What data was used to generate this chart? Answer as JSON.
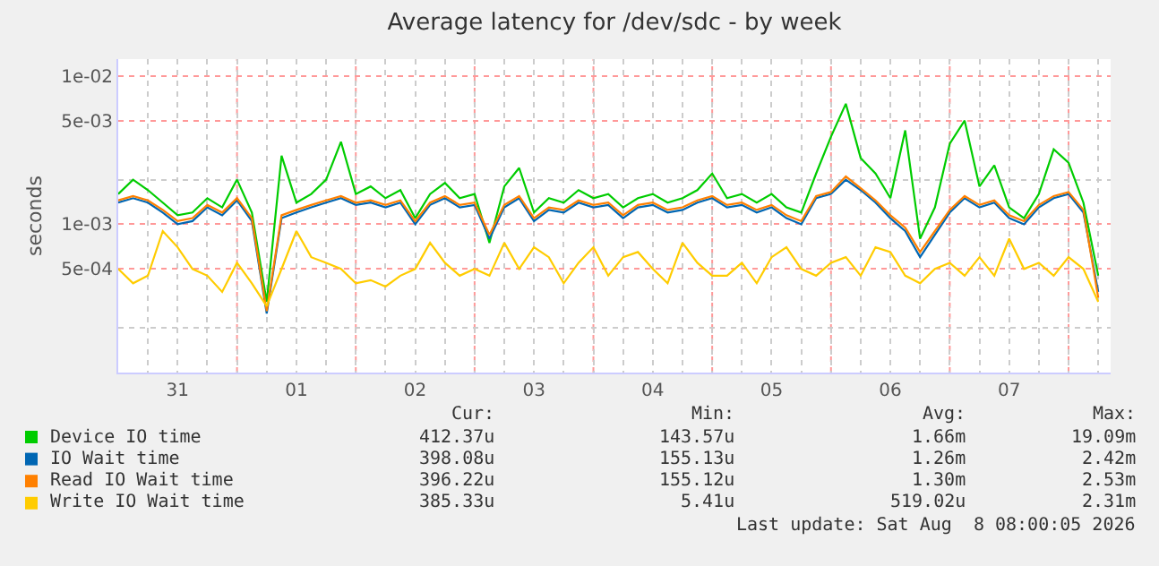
{
  "chart_data": {
    "type": "line",
    "title": "Average latency for /dev/sdc - by week",
    "ylabel": "seconds",
    "x": [
      "2026-07-31T00:00",
      "2026-07-31T03:00",
      "2026-07-31T06:00",
      "2026-07-31T09:00",
      "2026-07-31T12:00",
      "2026-07-31T15:00",
      "2026-07-31T18:00",
      "2026-07-31T21:00",
      "2026-08-01T00:00",
      "2026-08-01T03:00",
      "2026-08-01T06:00",
      "2026-08-01T09:00",
      "2026-08-01T12:00",
      "2026-08-01T15:00",
      "2026-08-01T18:00",
      "2026-08-01T21:00",
      "2026-08-02T00:00",
      "2026-08-02T03:00",
      "2026-08-02T06:00",
      "2026-08-02T09:00",
      "2026-08-02T12:00",
      "2026-08-02T15:00",
      "2026-08-02T18:00",
      "2026-08-02T21:00",
      "2026-08-03T00:00",
      "2026-08-03T03:00",
      "2026-08-03T06:00",
      "2026-08-03T09:00",
      "2026-08-03T12:00",
      "2026-08-03T15:00",
      "2026-08-03T18:00",
      "2026-08-03T21:00",
      "2026-08-04T00:00",
      "2026-08-04T03:00",
      "2026-08-04T06:00",
      "2026-08-04T09:00",
      "2026-08-04T12:00",
      "2026-08-04T15:00",
      "2026-08-04T18:00",
      "2026-08-04T21:00",
      "2026-08-05T00:00",
      "2026-08-05T03:00",
      "2026-08-05T06:00",
      "2026-08-05T09:00",
      "2026-08-05T12:00",
      "2026-08-05T15:00",
      "2026-08-05T18:00",
      "2026-08-05T21:00",
      "2026-08-06T00:00",
      "2026-08-06T03:00",
      "2026-08-06T06:00",
      "2026-08-06T09:00",
      "2026-08-06T12:00",
      "2026-08-06T15:00",
      "2026-08-06T18:00",
      "2026-08-06T21:00",
      "2026-08-07T00:00",
      "2026-08-07T03:00",
      "2026-08-07T06:00",
      "2026-08-07T09:00",
      "2026-08-07T12:00",
      "2026-08-07T15:00",
      "2026-08-07T18:00",
      "2026-08-07T21:00",
      "2026-08-08T00:00",
      "2026-08-08T03:00",
      "2026-08-08T06:00"
    ],
    "series": [
      {
        "name": "Device IO time",
        "color": "#00cc00",
        "values": [
          0.0016,
          0.002,
          0.0017,
          0.0014,
          0.00115,
          0.0012,
          0.0015,
          0.0013,
          0.002,
          0.0012,
          0.0003,
          0.0029,
          0.0014,
          0.0016,
          0.002,
          0.0036,
          0.0016,
          0.0018,
          0.0015,
          0.0017,
          0.0011,
          0.0016,
          0.0019,
          0.0015,
          0.0016,
          0.00075,
          0.0018,
          0.0024,
          0.0012,
          0.0015,
          0.0014,
          0.0017,
          0.0015,
          0.0016,
          0.0013,
          0.0015,
          0.0016,
          0.0014,
          0.0015,
          0.0017,
          0.0022,
          0.0015,
          0.0016,
          0.0014,
          0.0016,
          0.0013,
          0.0012,
          0.0022,
          0.0039,
          0.0065,
          0.0028,
          0.0022,
          0.0015,
          0.0043,
          0.0008,
          0.0013,
          0.0035,
          0.005,
          0.0018,
          0.0025,
          0.0013,
          0.0011,
          0.0016,
          0.0032,
          0.0026,
          0.0014,
          0.00045
        ]
      },
      {
        "name": "IO Wait time",
        "color": "#0066b3",
        "values": [
          0.0014,
          0.0015,
          0.0014,
          0.0012,
          0.001,
          0.00105,
          0.0013,
          0.00115,
          0.00145,
          0.00105,
          0.00025,
          0.0011,
          0.0012,
          0.0013,
          0.0014,
          0.0015,
          0.00135,
          0.0014,
          0.0013,
          0.0014,
          0.001,
          0.00135,
          0.0015,
          0.0013,
          0.00135,
          0.0008,
          0.0013,
          0.0015,
          0.00105,
          0.00125,
          0.0012,
          0.0014,
          0.0013,
          0.00135,
          0.0011,
          0.0013,
          0.00135,
          0.0012,
          0.00125,
          0.0014,
          0.0015,
          0.0013,
          0.00135,
          0.0012,
          0.0013,
          0.0011,
          0.001,
          0.0015,
          0.0016,
          0.002,
          0.0017,
          0.0014,
          0.0011,
          0.0009,
          0.0006,
          0.00085,
          0.0012,
          0.0015,
          0.0013,
          0.0014,
          0.0011,
          0.001,
          0.0013,
          0.0015,
          0.0016,
          0.0012,
          0.00035
        ]
      },
      {
        "name": "Read IO Wait time",
        "color": "#ff8000",
        "values": [
          0.00145,
          0.00155,
          0.00145,
          0.00125,
          0.00105,
          0.0011,
          0.00135,
          0.0012,
          0.0015,
          0.0011,
          0.00026,
          0.00115,
          0.00125,
          0.00135,
          0.00145,
          0.00155,
          0.0014,
          0.00145,
          0.00135,
          0.00145,
          0.00105,
          0.0014,
          0.00155,
          0.00135,
          0.0014,
          0.00085,
          0.00135,
          0.00155,
          0.0011,
          0.0013,
          0.00125,
          0.00145,
          0.00135,
          0.0014,
          0.00115,
          0.00135,
          0.0014,
          0.00125,
          0.0013,
          0.00145,
          0.00155,
          0.00135,
          0.0014,
          0.00125,
          0.00135,
          0.00115,
          0.00105,
          0.00155,
          0.00165,
          0.0021,
          0.00175,
          0.00145,
          0.00115,
          0.00095,
          0.00065,
          0.0009,
          0.00125,
          0.00155,
          0.00135,
          0.00145,
          0.00115,
          0.00105,
          0.00135,
          0.00155,
          0.00165,
          0.00125,
          0.00032
        ]
      },
      {
        "name": "Write IO Wait time",
        "color": "#ffcc00",
        "values": [
          0.0005,
          0.0004,
          0.00045,
          0.0009,
          0.0007,
          0.0005,
          0.00045,
          0.00035,
          0.00055,
          0.0004,
          0.00028,
          0.0005,
          0.0009,
          0.0006,
          0.00055,
          0.0005,
          0.0004,
          0.00042,
          0.00038,
          0.00045,
          0.0005,
          0.00075,
          0.00055,
          0.00045,
          0.0005,
          0.00045,
          0.00075,
          0.0005,
          0.0007,
          0.0006,
          0.0004,
          0.00055,
          0.0007,
          0.00045,
          0.0006,
          0.00065,
          0.0005,
          0.0004,
          0.00075,
          0.00055,
          0.00045,
          0.00045,
          0.00055,
          0.0004,
          0.0006,
          0.0007,
          0.0005,
          0.00045,
          0.00055,
          0.0006,
          0.00045,
          0.0007,
          0.00065,
          0.00045,
          0.0004,
          0.0005,
          0.00055,
          0.00045,
          0.0006,
          0.00045,
          0.0008,
          0.0005,
          0.00055,
          0.00045,
          0.0006,
          0.0005,
          0.0003
        ]
      }
    ],
    "log": "y",
    "ylim": [
      0.0001,
      0.013
    ],
    "yticks": [
      {
        "value": 0.01,
        "label": "1e-02"
      },
      {
        "value": 0.005,
        "label": "5e-03"
      },
      {
        "value": 0.001,
        "label": "1e-03"
      },
      {
        "value": 0.0005,
        "label": "5e-04"
      }
    ],
    "xlim": [
      "2026-07-31T00:00",
      "2026-08-08T08:30"
    ],
    "xticks": [
      {
        "value": "2026-07-31T12:00",
        "label": "31"
      },
      {
        "value": "2026-08-01T12:00",
        "label": "01"
      },
      {
        "value": "2026-08-02T12:00",
        "label": "02"
      },
      {
        "value": "2026-08-03T12:00",
        "label": "03"
      },
      {
        "value": "2026-08-04T12:00",
        "label": "04"
      },
      {
        "value": "2026-08-05T12:00",
        "label": "05"
      },
      {
        "value": "2026-08-06T12:00",
        "label": "06"
      },
      {
        "value": "2026-08-07T12:00",
        "label": "07"
      }
    ],
    "ref_lines": [
      {
        "axis": "x",
        "value": "2026-08-01T00:00",
        "color": "#ff9999",
        "line_style": "dotted"
      },
      {
        "axis": "x",
        "value": "2026-08-02T00:00",
        "color": "#ff9999",
        "line_style": "dotted"
      },
      {
        "axis": "x",
        "value": "2026-08-03T00:00",
        "color": "#ff9999",
        "line_style": "dotted"
      },
      {
        "axis": "x",
        "value": "2026-08-04T00:00",
        "color": "#ff9999",
        "line_style": "dotted"
      },
      {
        "axis": "x",
        "value": "2026-08-05T00:00",
        "color": "#ff9999",
        "line_style": "dotted"
      },
      {
        "axis": "x",
        "value": "2026-08-06T00:00",
        "color": "#ff9999",
        "line_style": "dotted"
      },
      {
        "axis": "x",
        "value": "2026-08-07T00:00",
        "color": "#ff9999",
        "line_style": "dotted"
      },
      {
        "axis": "x",
        "value": "2026-08-08T00:00",
        "color": "#ff9999",
        "line_style": "dotted"
      }
    ],
    "grid": true,
    "legend": "bottom",
    "marker": "none",
    "line_style": "solid",
    "annotations": [
      "Cur:",
      "Min:",
      "Avg:",
      "Max:",
      "412.37u",
      "143.57u",
      "1.66m",
      "19.09m",
      "398.08u",
      "155.13u",
      "1.26m",
      "2.42m",
      "396.22u",
      "155.12u",
      "1.30m",
      "2.53m",
      "385.33u",
      "5.41u",
      "519.02u",
      "2.31m",
      "Last update: Sat Aug  8 08:00:05 2026"
    ]
  }
}
